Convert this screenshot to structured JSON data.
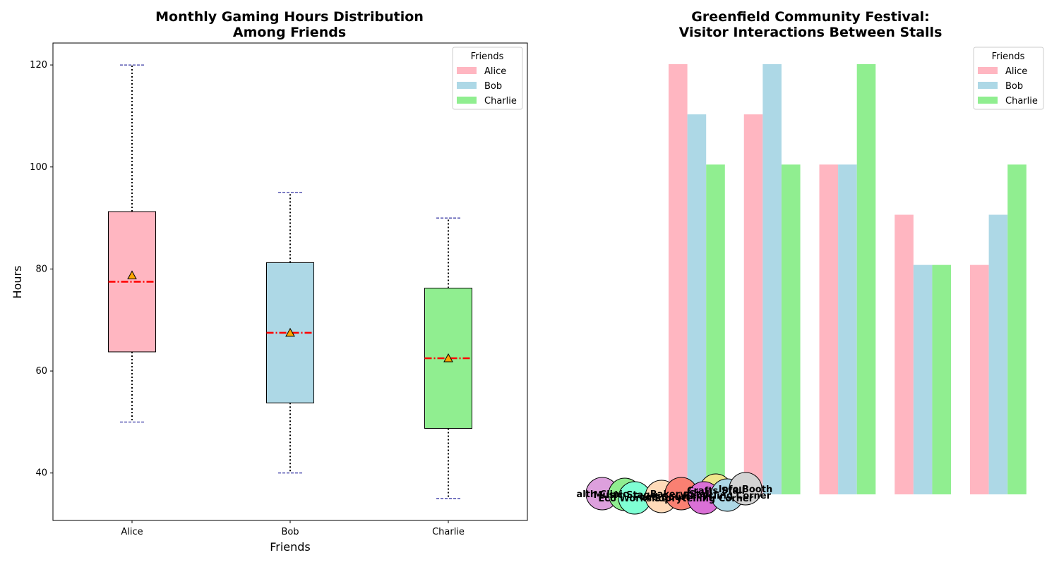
{
  "chart_data": [
    {
      "type": "box",
      "title_lines": [
        "Monthly Gaming Hours Distribution",
        "Among Friends"
      ],
      "xlabel": "Friends",
      "ylabel": "Hours",
      "ylim": [
        30.7,
        124.3
      ],
      "yticks": [
        40,
        60,
        80,
        100,
        120
      ],
      "categories": [
        "Alice",
        "Bob",
        "Charlie"
      ],
      "boxes": [
        {
          "name": "Alice",
          "whisker_low": 50,
          "q1": 63.75,
          "median": 77.5,
          "q3": 91.25,
          "whisker_high": 120,
          "mean": 78.75,
          "color": "#ffb6c1"
        },
        {
          "name": "Bob",
          "whisker_low": 40,
          "q1": 53.75,
          "median": 67.5,
          "q3": 81.25,
          "whisker_high": 95,
          "mean": 67.5,
          "color": "#add8e6"
        },
        {
          "name": "Charlie",
          "whisker_low": 35,
          "q1": 48.75,
          "median": 62.5,
          "q3": 76.25,
          "whisker_high": 90,
          "mean": 62.5,
          "color": "#90ee90"
        }
      ],
      "median_color": "#ff0000",
      "mean_marker_color": "#ffa500",
      "whisker_cap_color": "#00008b",
      "grid": false,
      "legend": {
        "title": "Friends",
        "placement": "top-right",
        "entries": [
          "Alice",
          "Bob",
          "Charlie"
        ]
      }
    },
    {
      "type": "bar",
      "title_lines": [
        "Greenfield Community Festival:",
        "Visitor Interactions Between Stalls"
      ],
      "axes_visible": false,
      "ylim": [
        0,
        120
      ],
      "series": [
        {
          "name": "Alice",
          "color": "#ffb6c1",
          "values": [
            120,
            106,
            92,
            78,
            64
          ]
        },
        {
          "name": "Bob",
          "color": "#add8e6",
          "values": [
            106,
            120,
            92,
            64,
            78
          ]
        },
        {
          "name": "Charlie",
          "color": "#90ee90",
          "values": [
            92,
            92,
            120,
            64,
            92
          ]
        }
      ],
      "legend": {
        "title": "Friends",
        "placement": "top-right",
        "entries": [
          "Alice",
          "Bob",
          "Charlie"
        ]
      },
      "network_nodes": [
        {
          "label": "alth Clinic",
          "color": "#dda0dd"
        },
        {
          "label": "Music Stage",
          "color": "#90ee90"
        },
        {
          "label": "Eco Workshop",
          "color": "#7fffd4"
        },
        {
          "label": "Food Court",
          "color": "#ffdab9"
        },
        {
          "label": "Bakery Stall",
          "color": "#fa8072"
        },
        {
          "label": "Crafts Stall",
          "color": "#f0e68c"
        },
        {
          "label": "Storytelling Corner",
          "color": "#da70d6"
        },
        {
          "label": "Recycling Corner",
          "color": "#add8e6"
        },
        {
          "label": "Info Booth",
          "color": "#d3d3d3"
        }
      ]
    }
  ]
}
